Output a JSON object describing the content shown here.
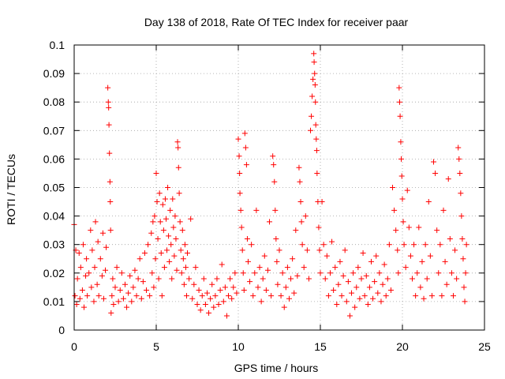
{
  "chart_data": {
    "type": "scatter",
    "title": "Day 138 of 2018, Rate Of TEC Index for receiver paar",
    "xlabel": "GPS time / hours",
    "ylabel": "ROTI / TECUs",
    "xlim": [
      0,
      25
    ],
    "ylim": [
      0,
      0.1
    ],
    "x_ticks": [
      0,
      5,
      10,
      15,
      20,
      25
    ],
    "y_ticks": [
      0,
      0.01,
      0.02,
      0.03,
      0.04,
      0.05,
      0.06,
      0.07,
      0.08,
      0.09,
      0.1
    ],
    "x_tick_labels": [
      "0",
      "5",
      "10",
      "15",
      "20",
      "25"
    ],
    "y_tick_labels": [
      "0",
      "0.01",
      "0.02",
      "0.03",
      "0.04",
      "0.05",
      "0.06",
      "0.07",
      "0.08",
      "0.09",
      "0.1"
    ],
    "grid": true,
    "marker": "+",
    "series": [
      {
        "name": "ROTI",
        "color": "#ff0000",
        "points": [
          [
            0.0,
            0.037
          ],
          [
            0.05,
            0.012
          ],
          [
            0.1,
            0.028
          ],
          [
            0.15,
            0.009
          ],
          [
            0.2,
            0.018
          ],
          [
            0.3,
            0.027
          ],
          [
            0.35,
            0.011
          ],
          [
            0.4,
            0.022
          ],
          [
            0.5,
            0.014
          ],
          [
            0.55,
            0.03
          ],
          [
            0.6,
            0.008
          ],
          [
            0.7,
            0.019
          ],
          [
            0.75,
            0.025
          ],
          [
            0.8,
            0.012
          ],
          [
            0.9,
            0.02
          ],
          [
            1.0,
            0.035
          ],
          [
            1.05,
            0.015
          ],
          [
            1.1,
            0.028
          ],
          [
            1.2,
            0.01
          ],
          [
            1.25,
            0.022
          ],
          [
            1.3,
            0.038
          ],
          [
            1.4,
            0.016
          ],
          [
            1.45,
            0.031
          ],
          [
            1.5,
            0.012
          ],
          [
            1.6,
            0.025
          ],
          [
            1.7,
            0.019
          ],
          [
            1.75,
            0.034
          ],
          [
            1.8,
            0.011
          ],
          [
            1.9,
            0.021
          ],
          [
            1.95,
            0.029
          ],
          [
            2.05,
            0.085
          ],
          [
            2.08,
            0.08
          ],
          [
            2.1,
            0.078
          ],
          [
            2.12,
            0.072
          ],
          [
            2.15,
            0.062
          ],
          [
            2.18,
            0.052
          ],
          [
            2.2,
            0.045
          ],
          [
            2.22,
            0.035
          ],
          [
            2.25,
            0.006
          ],
          [
            2.3,
            0.012
          ],
          [
            2.35,
            0.018
          ],
          [
            2.4,
            0.009
          ],
          [
            2.5,
            0.015
          ],
          [
            2.6,
            0.022
          ],
          [
            2.7,
            0.01
          ],
          [
            2.8,
            0.014
          ],
          [
            2.9,
            0.02
          ],
          [
            3.0,
            0.011
          ],
          [
            3.1,
            0.016
          ],
          [
            3.2,
            0.008
          ],
          [
            3.3,
            0.013
          ],
          [
            3.4,
            0.019
          ],
          [
            3.5,
            0.01
          ],
          [
            3.6,
            0.015
          ],
          [
            3.7,
            0.021
          ],
          [
            3.8,
            0.012
          ],
          [
            3.9,
            0.018
          ],
          [
            4.0,
            0.025
          ],
          [
            4.1,
            0.011
          ],
          [
            4.2,
            0.017
          ],
          [
            4.3,
            0.027
          ],
          [
            4.4,
            0.014
          ],
          [
            4.5,
            0.03
          ],
          [
            4.6,
            0.012
          ],
          [
            4.7,
            0.034
          ],
          [
            4.75,
            0.02
          ],
          [
            4.8,
            0.038
          ],
          [
            4.85,
            0.015
          ],
          [
            4.9,
            0.04
          ],
          [
            4.95,
            0.025
          ],
          [
            5.0,
            0.055
          ],
          [
            5.05,
            0.045
          ],
          [
            5.1,
            0.032
          ],
          [
            5.15,
            0.018
          ],
          [
            5.2,
            0.048
          ],
          [
            5.25,
            0.038
          ],
          [
            5.3,
            0.027
          ],
          [
            5.35,
            0.012
          ],
          [
            5.4,
            0.044
          ],
          [
            5.45,
            0.035
          ],
          [
            5.5,
            0.022
          ],
          [
            5.55,
            0.046
          ],
          [
            5.6,
            0.039
          ],
          [
            5.65,
            0.028
          ],
          [
            5.7,
            0.05
          ],
          [
            5.75,
            0.033
          ],
          [
            5.8,
            0.024
          ],
          [
            5.85,
            0.042
          ],
          [
            5.9,
            0.03
          ],
          [
            5.95,
            0.018
          ],
          [
            6.0,
            0.046
          ],
          [
            6.05,
            0.036
          ],
          [
            6.1,
            0.026
          ],
          [
            6.15,
            0.04
          ],
          [
            6.2,
            0.032
          ],
          [
            6.25,
            0.021
          ],
          [
            6.3,
            0.066
          ],
          [
            6.33,
            0.064
          ],
          [
            6.36,
            0.057
          ],
          [
            6.4,
            0.048
          ],
          [
            6.45,
            0.038
          ],
          [
            6.5,
            0.028
          ],
          [
            6.55,
            0.02
          ],
          [
            6.6,
            0.035
          ],
          [
            6.65,
            0.025
          ],
          [
            6.7,
            0.016
          ],
          [
            6.75,
            0.03
          ],
          [
            6.8,
            0.022
          ],
          [
            6.85,
            0.012
          ],
          [
            6.9,
            0.027
          ],
          [
            7.0,
            0.018
          ],
          [
            7.1,
            0.039
          ],
          [
            7.2,
            0.011
          ],
          [
            7.3,
            0.016
          ],
          [
            7.4,
            0.022
          ],
          [
            7.5,
            0.009
          ],
          [
            7.6,
            0.014
          ],
          [
            7.7,
            0.007
          ],
          [
            7.8,
            0.012
          ],
          [
            7.9,
            0.018
          ],
          [
            8.0,
            0.009
          ],
          [
            8.1,
            0.013
          ],
          [
            8.2,
            0.006
          ],
          [
            8.3,
            0.011
          ],
          [
            8.4,
            0.016
          ],
          [
            8.5,
            0.008
          ],
          [
            8.6,
            0.012
          ],
          [
            8.7,
            0.018
          ],
          [
            8.8,
            0.009
          ],
          [
            8.9,
            0.014
          ],
          [
            9.0,
            0.023
          ],
          [
            9.1,
            0.01
          ],
          [
            9.2,
            0.015
          ],
          [
            9.3,
            0.005
          ],
          [
            9.4,
            0.012
          ],
          [
            9.5,
            0.018
          ],
          [
            9.6,
            0.011
          ],
          [
            9.7,
            0.015
          ],
          [
            9.8,
            0.02
          ],
          [
            9.9,
            0.013
          ],
          [
            10.0,
            0.067
          ],
          [
            10.05,
            0.061
          ],
          [
            10.08,
            0.055
          ],
          [
            10.1,
            0.048
          ],
          [
            10.15,
            0.042
          ],
          [
            10.2,
            0.036
          ],
          [
            10.25,
            0.028
          ],
          [
            10.3,
            0.02
          ],
          [
            10.35,
            0.014
          ],
          [
            10.4,
            0.069
          ],
          [
            10.45,
            0.064
          ],
          [
            10.5,
            0.058
          ],
          [
            10.55,
            0.032
          ],
          [
            10.6,
            0.024
          ],
          [
            10.7,
            0.017
          ],
          [
            10.8,
            0.03
          ],
          [
            10.9,
            0.012
          ],
          [
            11.0,
            0.02
          ],
          [
            11.1,
            0.042
          ],
          [
            11.2,
            0.015
          ],
          [
            11.3,
            0.022
          ],
          [
            11.4,
            0.01
          ],
          [
            11.5,
            0.018
          ],
          [
            11.6,
            0.026
          ],
          [
            11.7,
            0.014
          ],
          [
            11.8,
            0.021
          ],
          [
            11.9,
            0.038
          ],
          [
            12.0,
            0.012
          ],
          [
            12.1,
            0.061
          ],
          [
            12.15,
            0.058
          ],
          [
            12.2,
            0.052
          ],
          [
            12.25,
            0.042
          ],
          [
            12.3,
            0.032
          ],
          [
            12.35,
            0.024
          ],
          [
            12.4,
            0.016
          ],
          [
            12.5,
            0.028
          ],
          [
            12.6,
            0.012
          ],
          [
            12.7,
            0.02
          ],
          [
            12.8,
            0.008
          ],
          [
            12.9,
            0.015
          ],
          [
            13.0,
            0.022
          ],
          [
            13.1,
            0.011
          ],
          [
            13.2,
            0.018
          ],
          [
            13.3,
            0.025
          ],
          [
            13.4,
            0.013
          ],
          [
            13.5,
            0.035
          ],
          [
            13.6,
            0.019
          ],
          [
            13.7,
            0.057
          ],
          [
            13.75,
            0.052
          ],
          [
            13.8,
            0.045
          ],
          [
            13.85,
            0.038
          ],
          [
            13.9,
            0.03
          ],
          [
            14.0,
            0.022
          ],
          [
            14.1,
            0.04
          ],
          [
            14.2,
            0.028
          ],
          [
            14.3,
            0.018
          ],
          [
            14.4,
            0.07
          ],
          [
            14.45,
            0.075
          ],
          [
            14.5,
            0.082
          ],
          [
            14.55,
            0.088
          ],
          [
            14.6,
            0.097
          ],
          [
            14.62,
            0.094
          ],
          [
            14.65,
            0.09
          ],
          [
            14.68,
            0.086
          ],
          [
            14.7,
            0.08
          ],
          [
            14.72,
            0.072
          ],
          [
            14.75,
            0.067
          ],
          [
            14.78,
            0.063
          ],
          [
            14.8,
            0.055
          ],
          [
            14.85,
            0.045
          ],
          [
            14.9,
            0.036
          ],
          [
            14.95,
            0.028
          ],
          [
            15.0,
            0.02
          ],
          [
            15.1,
            0.045
          ],
          [
            15.2,
            0.03
          ],
          [
            15.3,
            0.018
          ],
          [
            15.4,
            0.026
          ],
          [
            15.5,
            0.012
          ],
          [
            15.6,
            0.02
          ],
          [
            15.7,
            0.031
          ],
          [
            15.8,
            0.014
          ],
          [
            15.9,
            0.022
          ],
          [
            16.0,
            0.009
          ],
          [
            16.1,
            0.016
          ],
          [
            16.2,
            0.024
          ],
          [
            16.3,
            0.012
          ],
          [
            16.4,
            0.019
          ],
          [
            16.5,
            0.028
          ],
          [
            16.6,
            0.01
          ],
          [
            16.7,
            0.017
          ],
          [
            16.8,
            0.005
          ],
          [
            16.9,
            0.013
          ],
          [
            17.0,
            0.02
          ],
          [
            17.1,
            0.008
          ],
          [
            17.2,
            0.015
          ],
          [
            17.3,
            0.022
          ],
          [
            17.4,
            0.011
          ],
          [
            17.5,
            0.018
          ],
          [
            17.6,
            0.027
          ],
          [
            17.7,
            0.012
          ],
          [
            17.8,
            0.019
          ],
          [
            17.9,
            0.009
          ],
          [
            18.0,
            0.015
          ],
          [
            18.1,
            0.024
          ],
          [
            18.2,
            0.011
          ],
          [
            18.3,
            0.017
          ],
          [
            18.4,
            0.026
          ],
          [
            18.5,
            0.013
          ],
          [
            18.6,
            0.02
          ],
          [
            18.7,
            0.01
          ],
          [
            18.8,
            0.016
          ],
          [
            18.9,
            0.023
          ],
          [
            19.0,
            0.012
          ],
          [
            19.1,
            0.018
          ],
          [
            19.2,
            0.03
          ],
          [
            19.3,
            0.014
          ],
          [
            19.4,
            0.05
          ],
          [
            19.5,
            0.042
          ],
          [
            19.6,
            0.035
          ],
          [
            19.7,
            0.028
          ],
          [
            19.75,
            0.02
          ],
          [
            19.8,
            0.085
          ],
          [
            19.83,
            0.08
          ],
          [
            19.86,
            0.075
          ],
          [
            19.9,
            0.066
          ],
          [
            19.93,
            0.06
          ],
          [
            19.96,
            0.054
          ],
          [
            20.0,
            0.046
          ],
          [
            20.05,
            0.038
          ],
          [
            20.1,
            0.03
          ],
          [
            20.2,
            0.022
          ],
          [
            20.3,
            0.049
          ],
          [
            20.4,
            0.036
          ],
          [
            20.5,
            0.026
          ],
          [
            20.6,
            0.018
          ],
          [
            20.7,
            0.03
          ],
          [
            20.8,
            0.012
          ],
          [
            20.9,
            0.02
          ],
          [
            21.0,
            0.036
          ],
          [
            21.1,
            0.015
          ],
          [
            21.2,
            0.024
          ],
          [
            21.3,
            0.011
          ],
          [
            21.4,
            0.03
          ],
          [
            21.5,
            0.018
          ],
          [
            21.6,
            0.045
          ],
          [
            21.7,
            0.026
          ],
          [
            21.8,
            0.012
          ],
          [
            21.9,
            0.059
          ],
          [
            22.0,
            0.055
          ],
          [
            22.1,
            0.035
          ],
          [
            22.2,
            0.02
          ],
          [
            22.3,
            0.03
          ],
          [
            22.4,
            0.012
          ],
          [
            22.5,
            0.042
          ],
          [
            22.6,
            0.024
          ],
          [
            22.7,
            0.016
          ],
          [
            22.8,
            0.053
          ],
          [
            22.9,
            0.032
          ],
          [
            23.0,
            0.02
          ],
          [
            23.1,
            0.012
          ],
          [
            23.2,
            0.028
          ],
          [
            23.3,
            0.018
          ],
          [
            23.4,
            0.064
          ],
          [
            23.45,
            0.06
          ],
          [
            23.5,
            0.055
          ],
          [
            23.55,
            0.048
          ],
          [
            23.6,
            0.04
          ],
          [
            23.65,
            0.032
          ],
          [
            23.7,
            0.025
          ],
          [
            23.75,
            0.015
          ],
          [
            23.8,
            0.01
          ],
          [
            23.85,
            0.02
          ],
          [
            23.9,
            0.03
          ]
        ]
      }
    ]
  }
}
